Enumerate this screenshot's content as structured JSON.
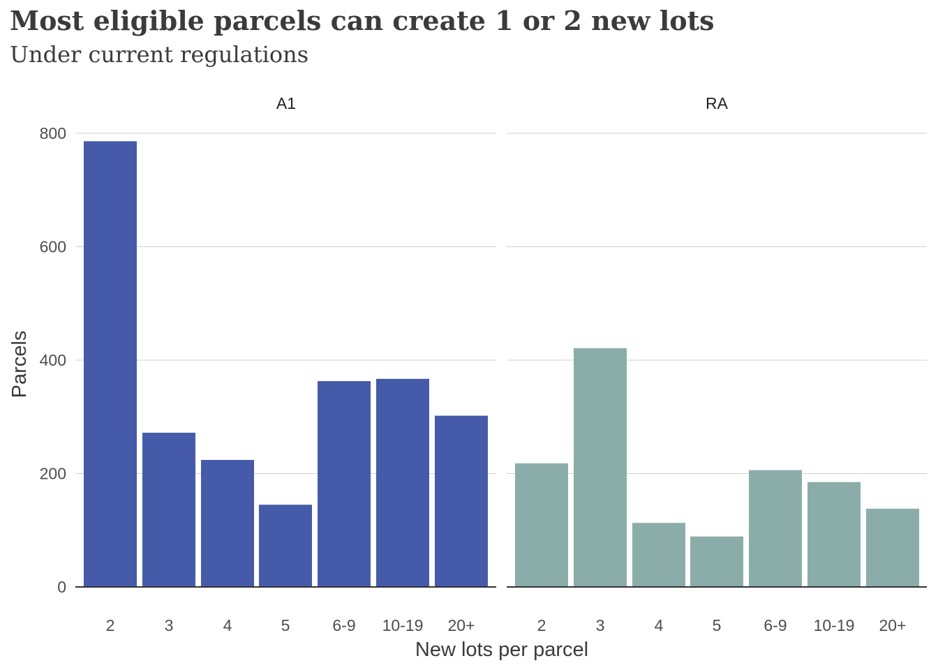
{
  "chart_data": {
    "type": "bar",
    "title": "Most eligible parcels can create 1 or 2 new lots",
    "subtitle": "Under current regulations",
    "xlabel": "New lots per parcel",
    "ylabel": "Parcels",
    "ylim": [
      0,
      800
    ],
    "yticks": [
      0,
      200,
      400,
      600,
      800
    ],
    "grid": true,
    "categories": [
      "2",
      "3",
      "4",
      "5",
      "6-9",
      "10-19",
      "20+"
    ],
    "facets": [
      {
        "label": "A1",
        "color": "#455ba9",
        "values": [
          786,
          272,
          224,
          145,
          363,
          367,
          302
        ]
      },
      {
        "label": "RA",
        "color": "#8badaa",
        "values": [
          218,
          421,
          113,
          89,
          206,
          185,
          138
        ]
      }
    ]
  }
}
